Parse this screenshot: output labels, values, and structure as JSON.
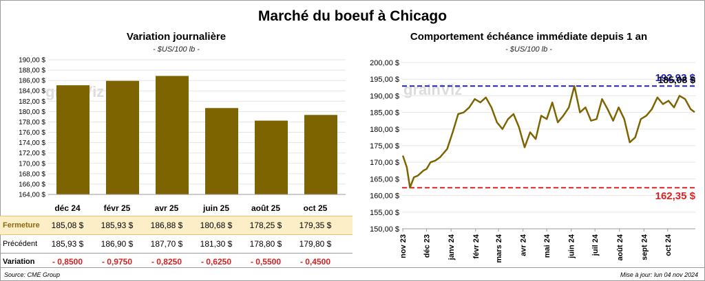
{
  "title": "Marché du boeuf à Chicago",
  "left": {
    "title": "Variation journalière",
    "unit": "- $US/100 lb -",
    "table": {
      "row_labels": {
        "close": "Fermeture",
        "previous": "Précédent",
        "variation": "Variation"
      },
      "months": [
        "déc 24",
        "févr 25",
        "avr 25",
        "juin 25",
        "août 25",
        "oct 25"
      ],
      "close": [
        "185,08  $",
        "185,93  $",
        "186,88  $",
        "180,68  $",
        "178,25  $",
        "179,35  $"
      ],
      "previous": [
        "185,93  $",
        "186,90  $",
        "187,70  $",
        "181,30  $",
        "178,80  $",
        "179,80  $"
      ],
      "variation": [
        "- 0,8500",
        "- 0,9750",
        "- 0,8250",
        "- 0,6250",
        "- 0,5500",
        "- 0,4500"
      ]
    }
  },
  "right": {
    "title": "Comportement  échéance immédiate depuis 1 an",
    "unit": "- $US/100 lb -",
    "labels": {
      "max": "192,93 $",
      "last": "185,08 $",
      "min": "162,35 $"
    }
  },
  "watermark": "grainViz",
  "footer": {
    "source": "Source: CME Group",
    "updated": "Mise à jour: lun 04 nov 2024"
  },
  "colors": {
    "bar": "#7d6400",
    "line": "#7d6400",
    "max_line": "#1f1fb0",
    "min_line": "#e02020",
    "close_row_bg": "#fcefc7"
  },
  "chart_data": [
    {
      "type": "bar",
      "title": "Variation journalière",
      "categories": [
        "déc 24",
        "févr 25",
        "avr 25",
        "juin 25",
        "août 25",
        "oct 25"
      ],
      "values": [
        185.08,
        185.93,
        186.88,
        180.68,
        178.25,
        179.35
      ],
      "ylim": [
        164,
        190
      ],
      "yticks": [
        "164,00 $",
        "166,00 $",
        "168,00 $",
        "170,00 $",
        "172,00 $",
        "174,00 $",
        "176,00 $",
        "178,00 $",
        "180,00 $",
        "182,00 $",
        "184,00 $",
        "186,00 $",
        "188,00 $",
        "190,00 $"
      ],
      "grid": true
    },
    {
      "type": "line",
      "title": "Comportement  échéance immédiate depuis 1 an",
      "ylim": [
        150,
        200
      ],
      "yticks": [
        "150,00 $",
        "155,00 $",
        "160,00 $",
        "165,00 $",
        "170,00 $",
        "175,00 $",
        "180,00 $",
        "185,00 $",
        "190,00 $",
        "195,00 $",
        "200,00 $"
      ],
      "xticks": [
        "nov 23",
        "déc 23",
        "janv 24",
        "févr 24",
        "mars 24",
        "avr 24",
        "mai 24",
        "juin 24",
        "juil 24",
        "août 24",
        "sept 24",
        "oct 24"
      ],
      "reference_lines": [
        {
          "value": 192.93,
          "label": "192,93 $"
        },
        {
          "value": 162.35,
          "label": "162,35 $"
        }
      ],
      "last_value": 185.08,
      "x": [
        "2023-11-01",
        "2023-11-06",
        "2023-11-10",
        "2023-11-15",
        "2023-11-20",
        "2023-11-27",
        "2023-12-01",
        "2023-12-06",
        "2023-12-12",
        "2023-12-18",
        "2023-12-27",
        "2024-01-03",
        "2024-01-10",
        "2024-01-17",
        "2024-01-24",
        "2024-01-31",
        "2024-02-07",
        "2024-02-14",
        "2024-02-21",
        "2024-02-28",
        "2024-03-06",
        "2024-03-13",
        "2024-03-20",
        "2024-03-27",
        "2024-04-03",
        "2024-04-10",
        "2024-04-17",
        "2024-04-24",
        "2024-05-01",
        "2024-05-08",
        "2024-05-15",
        "2024-05-22",
        "2024-05-29",
        "2024-06-05",
        "2024-06-12",
        "2024-06-19",
        "2024-06-26",
        "2024-07-03",
        "2024-07-10",
        "2024-07-17",
        "2024-07-24",
        "2024-07-31",
        "2024-08-07",
        "2024-08-14",
        "2024-08-21",
        "2024-08-28",
        "2024-09-04",
        "2024-09-11",
        "2024-09-18",
        "2024-09-25",
        "2024-10-02",
        "2024-10-09",
        "2024-10-16",
        "2024-10-23",
        "2024-10-30",
        "2024-11-04"
      ],
      "values": [
        172.0,
        168.5,
        162.35,
        165.5,
        166.0,
        167.5,
        168.0,
        170.0,
        170.5,
        171.5,
        174.0,
        179.0,
        184.5,
        185.0,
        186.5,
        189.0,
        188.0,
        189.5,
        186.5,
        182.0,
        180.0,
        183.0,
        184.5,
        180.5,
        174.5,
        179.0,
        177.0,
        184.0,
        183.0,
        188.0,
        182.0,
        184.0,
        186.5,
        192.93,
        185.0,
        186.5,
        182.5,
        183.0,
        189.0,
        186.0,
        182.5,
        186.5,
        183.0,
        176.0,
        177.5,
        183.0,
        184.0,
        186.0,
        189.5,
        187.5,
        188.5,
        186.5,
        190.0,
        189.0,
        186.0,
        185.08
      ]
    }
  ]
}
